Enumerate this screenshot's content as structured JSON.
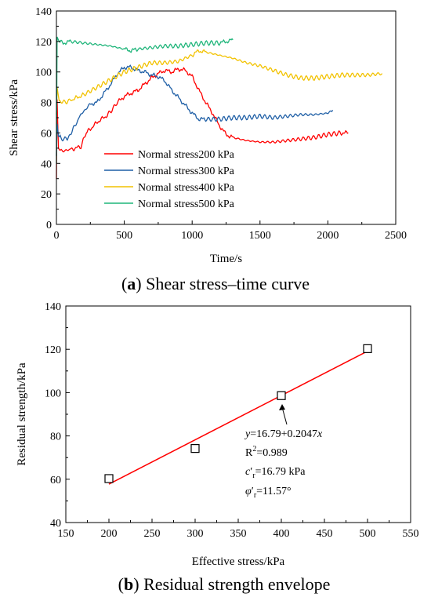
{
  "chart_data": [
    {
      "type": "line",
      "caption_letter": "a",
      "caption_text": " Shear stress–time curve",
      "xlabel": "Time/s",
      "ylabel": "Shear stress/kPa",
      "xlim": [
        0,
        2500
      ],
      "ylim": [
        0,
        140
      ],
      "xticks": [
        "0",
        "500",
        "1000",
        "1500",
        "2000",
        "2500"
      ],
      "yticks": [
        "0",
        "20",
        "40",
        "60",
        "80",
        "100",
        "120",
        "140"
      ],
      "legend_position": "center-left",
      "series": [
        {
          "name": "Normal stress200 kPa",
          "color": "#ff0000",
          "points": [
            [
              0,
              30
            ],
            [
              5,
              82
            ],
            [
              15,
              50
            ],
            [
              30,
              48
            ],
            [
              100,
              49
            ],
            [
              180,
              51
            ],
            [
              220,
              60
            ],
            [
              300,
              67
            ],
            [
              380,
              72
            ],
            [
              450,
              80
            ],
            [
              500,
              84
            ],
            [
              550,
              86
            ],
            [
              600,
              88
            ],
            [
              650,
              92
            ],
            [
              700,
              96
            ],
            [
              750,
              99
            ],
            [
              800,
              101
            ],
            [
              850,
              100
            ],
            [
              900,
              102
            ],
            [
              950,
              101
            ],
            [
              1000,
              97
            ],
            [
              1050,
              88
            ],
            [
              1100,
              80
            ],
            [
              1150,
              73
            ],
            [
              1200,
              65
            ],
            [
              1250,
              59
            ],
            [
              1300,
              57
            ],
            [
              1400,
              55
            ],
            [
              1500,
              54
            ],
            [
              1600,
              54
            ],
            [
              1700,
              55
            ],
            [
              1800,
              56
            ],
            [
              1900,
              57
            ],
            [
              2000,
              59
            ],
            [
              2100,
              60
            ],
            [
              2150,
              60
            ]
          ]
        },
        {
          "name": "Normal stress300 kPa",
          "color": "#1f5fa6",
          "points": [
            [
              0,
              45
            ],
            [
              5,
              66
            ],
            [
              15,
              58
            ],
            [
              40,
              56
            ],
            [
              80,
              56
            ],
            [
              120,
              62
            ],
            [
              180,
              72
            ],
            [
              250,
              79
            ],
            [
              300,
              80
            ],
            [
              350,
              86
            ],
            [
              400,
              92
            ],
            [
              450,
              99
            ],
            [
              500,
              103
            ],
            [
              550,
              103
            ],
            [
              600,
              101
            ],
            [
              650,
              100
            ],
            [
              700,
              98
            ],
            [
              750,
              97
            ],
            [
              800,
              94
            ],
            [
              850,
              88
            ],
            [
              900,
              83
            ],
            [
              950,
              78
            ],
            [
              1000,
              73
            ],
            [
              1050,
              69
            ],
            [
              1100,
              69
            ],
            [
              1200,
              69
            ],
            [
              1300,
              70
            ],
            [
              1400,
              70
            ],
            [
              1500,
              71
            ],
            [
              1600,
              70
            ],
            [
              1700,
              71
            ],
            [
              1800,
              72
            ],
            [
              1900,
              72
            ],
            [
              2000,
              73
            ],
            [
              2035,
              75
            ]
          ]
        },
        {
          "name": "Normal stress400 kPa",
          "color": "#f2c200",
          "points": [
            [
              0,
              72
            ],
            [
              5,
              90
            ],
            [
              20,
              81
            ],
            [
              60,
              80
            ],
            [
              120,
              82
            ],
            [
              200,
              85
            ],
            [
              300,
              90
            ],
            [
              400,
              95
            ],
            [
              500,
              100
            ],
            [
              600,
              103
            ],
            [
              700,
              106
            ],
            [
              800,
              106
            ],
            [
              900,
              107
            ],
            [
              1000,
              111
            ],
            [
              1050,
              114
            ],
            [
              1100,
              113
            ],
            [
              1200,
              111
            ],
            [
              1300,
              109
            ],
            [
              1400,
              106
            ],
            [
              1500,
              104
            ],
            [
              1600,
              101
            ],
            [
              1700,
              98
            ],
            [
              1800,
              96
            ],
            [
              1900,
              96
            ],
            [
              2000,
              97
            ],
            [
              2100,
              98
            ],
            [
              2200,
              98
            ],
            [
              2300,
              98
            ],
            [
              2400,
              99
            ]
          ]
        },
        {
          "name": "Normal stress500 kPa",
          "color": "#1fb57a",
          "points": [
            [
              0,
              40
            ],
            [
              5,
              123
            ],
            [
              20,
              120
            ],
            [
              50,
              119
            ],
            [
              100,
              120
            ],
            [
              200,
              119
            ],
            [
              300,
              118
            ],
            [
              400,
              117
            ],
            [
              500,
              115
            ],
            [
              550,
              114
            ],
            [
              600,
              115
            ],
            [
              700,
              116
            ],
            [
              800,
              117
            ],
            [
              900,
              117
            ],
            [
              1000,
              118
            ],
            [
              1100,
              119
            ],
            [
              1200,
              119
            ],
            [
              1250,
              120
            ],
            [
              1300,
              121
            ]
          ]
        }
      ]
    },
    {
      "type": "scatter",
      "caption_letter": "b",
      "caption_text": " Residual strength envelope",
      "xlabel": "Effective stress/kPa",
      "ylabel": "Residual strength/kPa",
      "xlim": [
        150,
        550
      ],
      "ylim": [
        40,
        140
      ],
      "xticks": [
        "150",
        "200",
        "250",
        "300",
        "350",
        "400",
        "450",
        "500",
        "550"
      ],
      "yticks": [
        "40",
        "60",
        "80",
        "100",
        "120",
        "140"
      ],
      "points": [
        [
          200,
          60.3
        ],
        [
          300,
          74.2
        ],
        [
          400,
          98.6
        ],
        [
          500,
          120.3
        ]
      ],
      "fit": {
        "x": [
          200,
          500
        ],
        "intercept": 16.79,
        "slope": 0.2047,
        "color": "#ff0000"
      },
      "annotations": {
        "equation": "y=16.79+0.2047x",
        "r2": "R2=0.989",
        "cohesion": "c′r=16.79 kPa",
        "friction": "φ′r=11.57°"
      }
    }
  ]
}
